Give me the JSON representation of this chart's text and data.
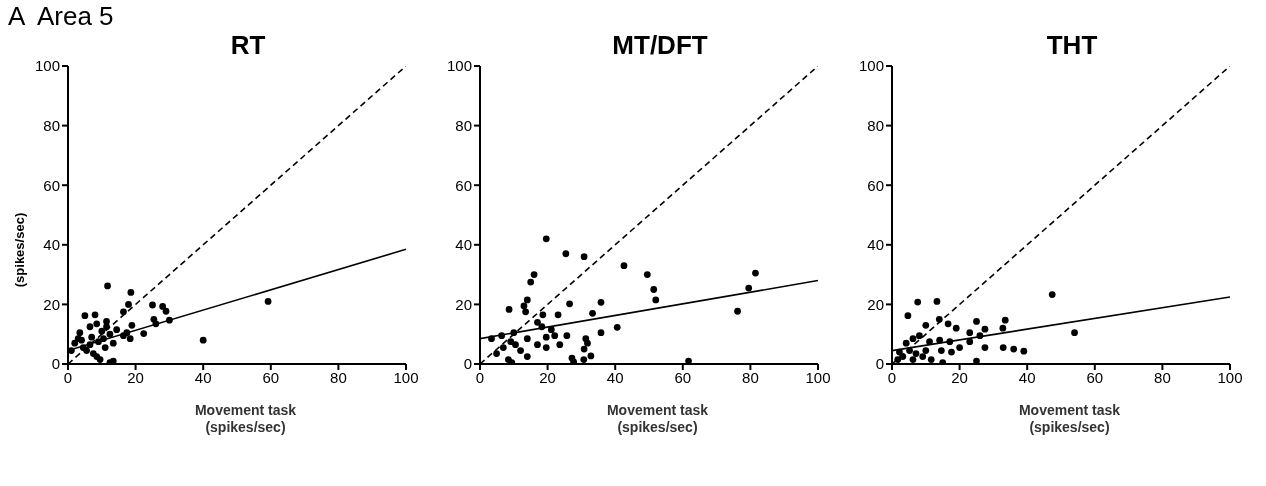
{
  "chart_data": [
    {
      "type": "scatter",
      "title": "RT",
      "annotations": [
        "A  Area 5"
      ],
      "xlabel": "Movement task\n(spikes/sec)",
      "ylabel": "(spikes/sec)",
      "xlim": [
        0,
        100
      ],
      "ylim": [
        0,
        100
      ],
      "xticks": [
        0,
        20,
        40,
        60,
        80,
        100
      ],
      "yticks": [
        0,
        20,
        40,
        60,
        80,
        100
      ],
      "series": [
        {
          "type": "scatter",
          "marker": "circle",
          "color": "#000000",
          "x": [
            11.7,
            18.6,
            17.9,
            25,
            28,
            29,
            59.2,
            40,
            22.4,
            18.9,
            25.4,
            26,
            30,
            16.4,
            5,
            8,
            11.4,
            3.5,
            6.5,
            8.5,
            10,
            12.4,
            14.4,
            17.4,
            18.4,
            16.4,
            11,
            13.4,
            6.5,
            5.5,
            7.5,
            8.5,
            9.5,
            4,
            2,
            1,
            10.5,
            12.4,
            13.4,
            7,
            9,
            4.5,
            3,
            11.4
          ],
          "values": [
            26.2,
            24,
            20,
            19.8,
            19.3,
            17.7,
            21,
            8,
            10.2,
            13,
            15,
            13.5,
            14.7,
            17.5,
            16.2,
            16.5,
            14.3,
            10.5,
            12.5,
            13.5,
            11,
            10,
            11.5,
            10.5,
            8.5,
            9.5,
            5.5,
            7,
            6.5,
            4.5,
            3.5,
            2.5,
            1.5,
            8,
            7,
            4.5,
            8.5,
            0.5,
            1,
            9,
            7.5,
            5.5,
            8.5,
            12.5
          ]
        },
        {
          "type": "line",
          "color": "#000000",
          "line_style": "solid",
          "x": [
            0,
            100
          ],
          "values": [
            4.5,
            38.5
          ]
        },
        {
          "type": "line",
          "color": "#000000",
          "line_style": "dashed",
          "x": [
            0,
            100
          ],
          "values": [
            0,
            100
          ]
        }
      ]
    },
    {
      "type": "scatter",
      "title": "MT/DFT",
      "xlabel": "Movement task\n(spikes/sec)",
      "xlim": [
        0,
        100
      ],
      "ylim": [
        0,
        100
      ],
      "xticks": [
        0,
        20,
        40,
        60,
        80,
        100
      ],
      "yticks": [
        0,
        20,
        40,
        60,
        80,
        100
      ],
      "series": [
        {
          "type": "scatter",
          "marker": "circle",
          "color": "#000000",
          "x": [
            19.6,
            25.4,
            30.8,
            16,
            15,
            42.6,
            49.5,
            51.4,
            52,
            81.5,
            79.5,
            76.2,
            61.7,
            40.6,
            35.8,
            33.3,
            26.5,
            23.1,
            18.6,
            14,
            13,
            13.5,
            8.6,
            17,
            35.8,
            31.3,
            31.8,
            30.8,
            32.8,
            27.2,
            27.7,
            30.7,
            23.6,
            19.6,
            19.6,
            17,
            22.1,
            25.7,
            14,
            12,
            10.5,
            9.1,
            6.9,
            4.9,
            8.4,
            9.4,
            3.4,
            14,
            10,
            6.4,
            18.3,
            21.1
          ],
          "values": [
            42,
            37,
            36,
            30,
            27.5,
            33,
            30,
            25,
            21.5,
            30.5,
            25.5,
            17.7,
            1,
            12.3,
            20.7,
            17,
            20.2,
            16.5,
            16.5,
            21.5,
            19.5,
            17.5,
            18.3,
            14,
            10.5,
            8.5,
            7,
            5,
            2.7,
            2,
            0.7,
            1.5,
            6.5,
            9,
            5.5,
            6.5,
            9.5,
            9.5,
            2.5,
            4.5,
            6.5,
            7.5,
            5.5,
            3.5,
            1.5,
            0.5,
            8.5,
            8.5,
            10.5,
            9.5,
            12.5,
            11.5
          ]
        },
        {
          "type": "line",
          "color": "#000000",
          "line_style": "solid",
          "x": [
            0,
            100
          ],
          "values": [
            8.5,
            28
          ]
        },
        {
          "type": "line",
          "color": "#000000",
          "line_style": "dashed",
          "x": [
            0,
            100
          ],
          "values": [
            0,
            100
          ]
        }
      ]
    },
    {
      "type": "scatter",
      "title": "THT",
      "xlabel": "Movement task\n(spikes/sec)",
      "xlim": [
        0,
        100
      ],
      "ylim": [
        0,
        100
      ],
      "xticks": [
        0,
        20,
        40,
        60,
        80,
        100
      ],
      "yticks": [
        0,
        20,
        40,
        60,
        80,
        100
      ],
      "series": [
        {
          "type": "scatter",
          "marker": "circle",
          "color": "#000000",
          "x": [
            47.4,
            54,
            7.6,
            13.3,
            4.7,
            14,
            33.5,
            25,
            16.6,
            10,
            27.5,
            19,
            32.8,
            23,
            26,
            32.9,
            36,
            39,
            27.5,
            25,
            20,
            17.6,
            14.6,
            15,
            11.6,
            9.1,
            7.1,
            5.2,
            3.2,
            1.7,
            6.2,
            4.2,
            6.2,
            8.1,
            11.1,
            14.1,
            17.1,
            23,
            2.2,
            10
          ],
          "values": [
            23.3,
            10.5,
            20.8,
            21,
            16.2,
            15,
            14.7,
            14.3,
            13.5,
            13,
            11.7,
            12,
            12,
            10.5,
            9.5,
            5.5,
            5,
            4.3,
            5.5,
            1,
            5.5,
            4,
            4.5,
            0.5,
            1.5,
            2.5,
            3.5,
            4.5,
            2.5,
            1.5,
            1.5,
            7,
            8.5,
            9.5,
            7.5,
            8,
            7.5,
            7.5,
            4,
            4.5
          ]
        },
        {
          "type": "line",
          "color": "#000000",
          "line_style": "solid",
          "x": [
            0,
            100
          ],
          "values": [
            4.5,
            22.5
          ]
        },
        {
          "type": "line",
          "color": "#000000",
          "line_style": "dashed",
          "x": [
            0,
            100
          ],
          "values": [
            0,
            100
          ]
        }
      ]
    }
  ]
}
